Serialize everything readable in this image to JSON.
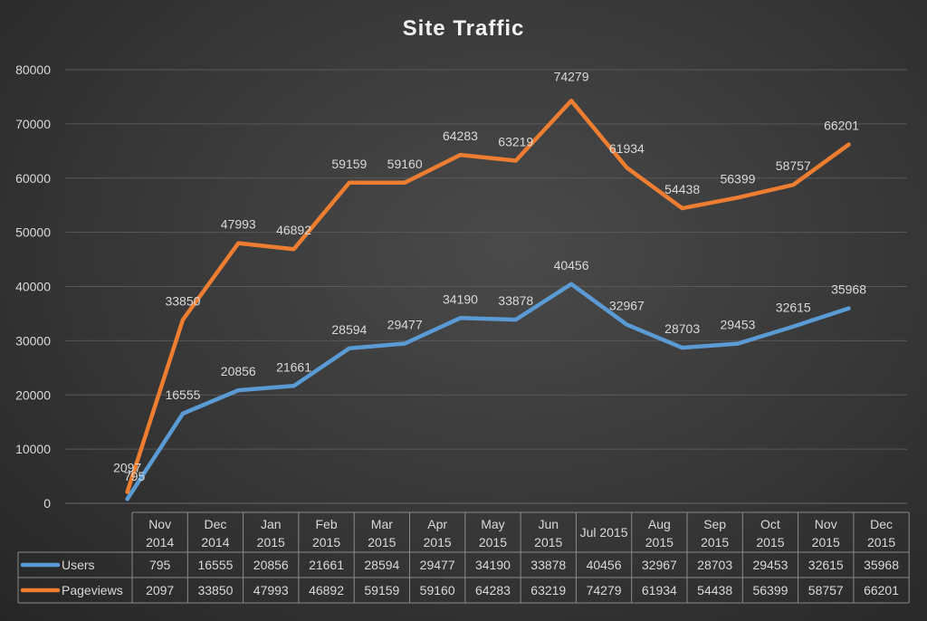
{
  "chart_data": {
    "type": "line",
    "title": "Site Traffic",
    "categories": [
      [
        "Nov",
        "2014"
      ],
      [
        "Dec",
        "2014"
      ],
      [
        "Jan",
        "2015"
      ],
      [
        "Feb",
        "2015"
      ],
      [
        "Mar",
        "2015"
      ],
      [
        "Apr",
        "2015"
      ],
      [
        "May",
        "2015"
      ],
      [
        "Jun",
        "2015"
      ],
      [
        "Jul 2015"
      ],
      [
        "Aug",
        "2015"
      ],
      [
        "Sep",
        "2015"
      ],
      [
        "Oct",
        "2015"
      ],
      [
        "Nov",
        "2015"
      ],
      [
        "Dec",
        "2015"
      ]
    ],
    "series": [
      {
        "name": "Users",
        "color": "#5b9bd5",
        "values": [
          795,
          16555,
          20856,
          21661,
          28594,
          29477,
          34190,
          33878,
          40456,
          32967,
          28703,
          29453,
          32615,
          35968
        ],
        "plotted": [
          795,
          16555,
          20856,
          21661,
          28594,
          29477,
          34190,
          33878,
          40456,
          32967,
          28703,
          29453,
          32615,
          35968
        ]
      },
      {
        "name": "Pageviews",
        "color": "#ed7d31",
        "values": [
          2097,
          33850,
          47993,
          46892,
          59159,
          59160,
          64283,
          63219,
          74279,
          61934,
          54438,
          56399,
          58757,
          66201
        ],
        "plotted": [
          2097,
          33850,
          47993,
          46892,
          59159,
          59160,
          64283,
          63219,
          74279,
          61934,
          54438,
          56399,
          58757,
          66201
        ]
      }
    ],
    "y_ticks": [
      "0",
      "10000",
      "20000",
      "30000",
      "40000",
      "50000",
      "60000",
      "70000",
      "80000"
    ],
    "ylim": [
      0,
      80000
    ],
    "grid": true,
    "legend": "data-table"
  }
}
